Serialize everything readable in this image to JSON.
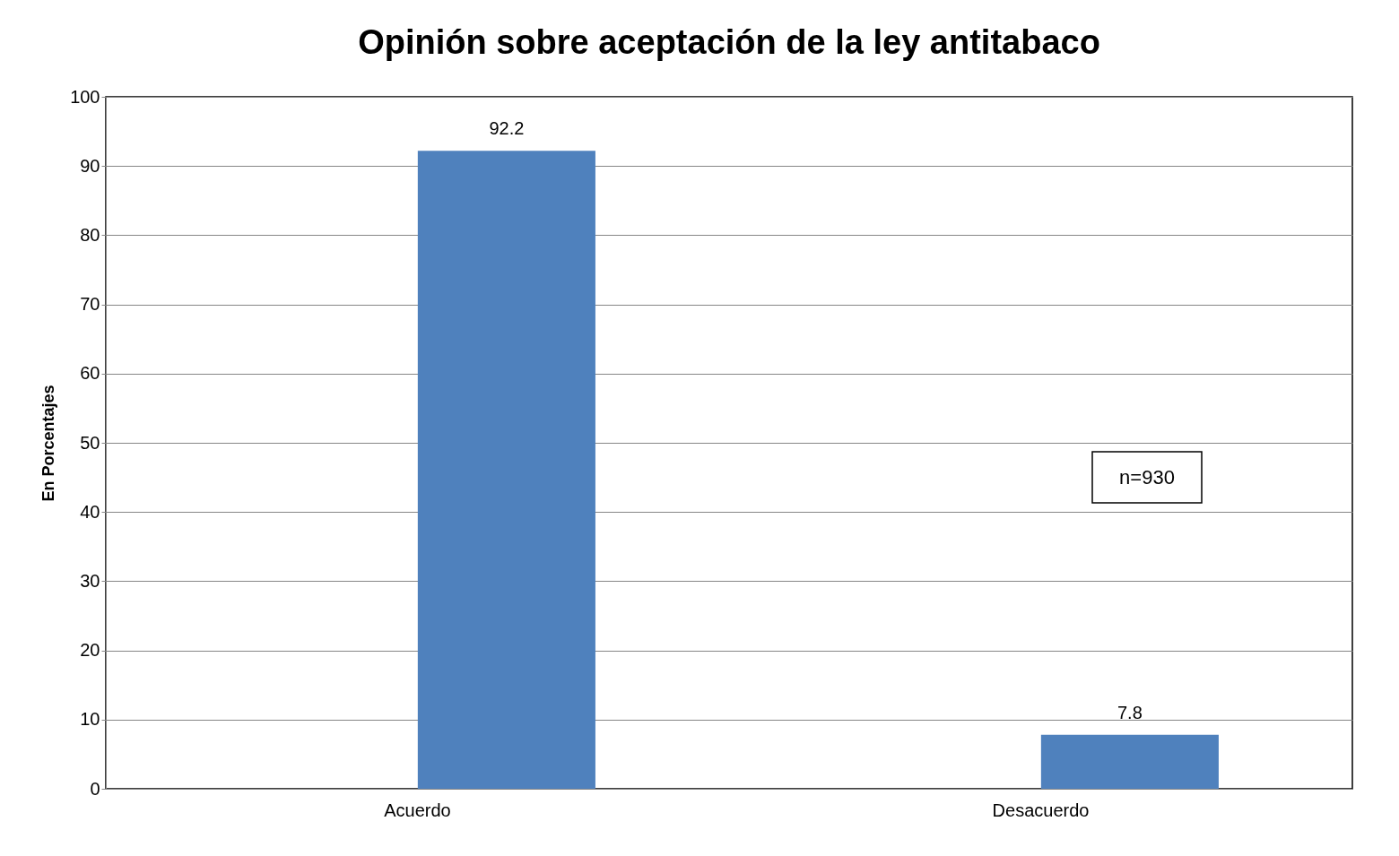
{
  "chart_data": {
    "type": "bar",
    "title": "Opinión sobre aceptación de la ley antitabaco",
    "ylabel": "En Porcentajes",
    "categories": [
      "Acuerdo",
      "Desacuerdo"
    ],
    "values": [
      92.2,
      7.8
    ],
    "color": "#4f81bd",
    "ylim": [
      0,
      100
    ],
    "yticks": [
      0,
      10,
      20,
      30,
      40,
      50,
      60,
      70,
      80,
      90,
      100
    ],
    "grid": "y",
    "data_labels": true,
    "annotations": [
      "n=930"
    ]
  }
}
